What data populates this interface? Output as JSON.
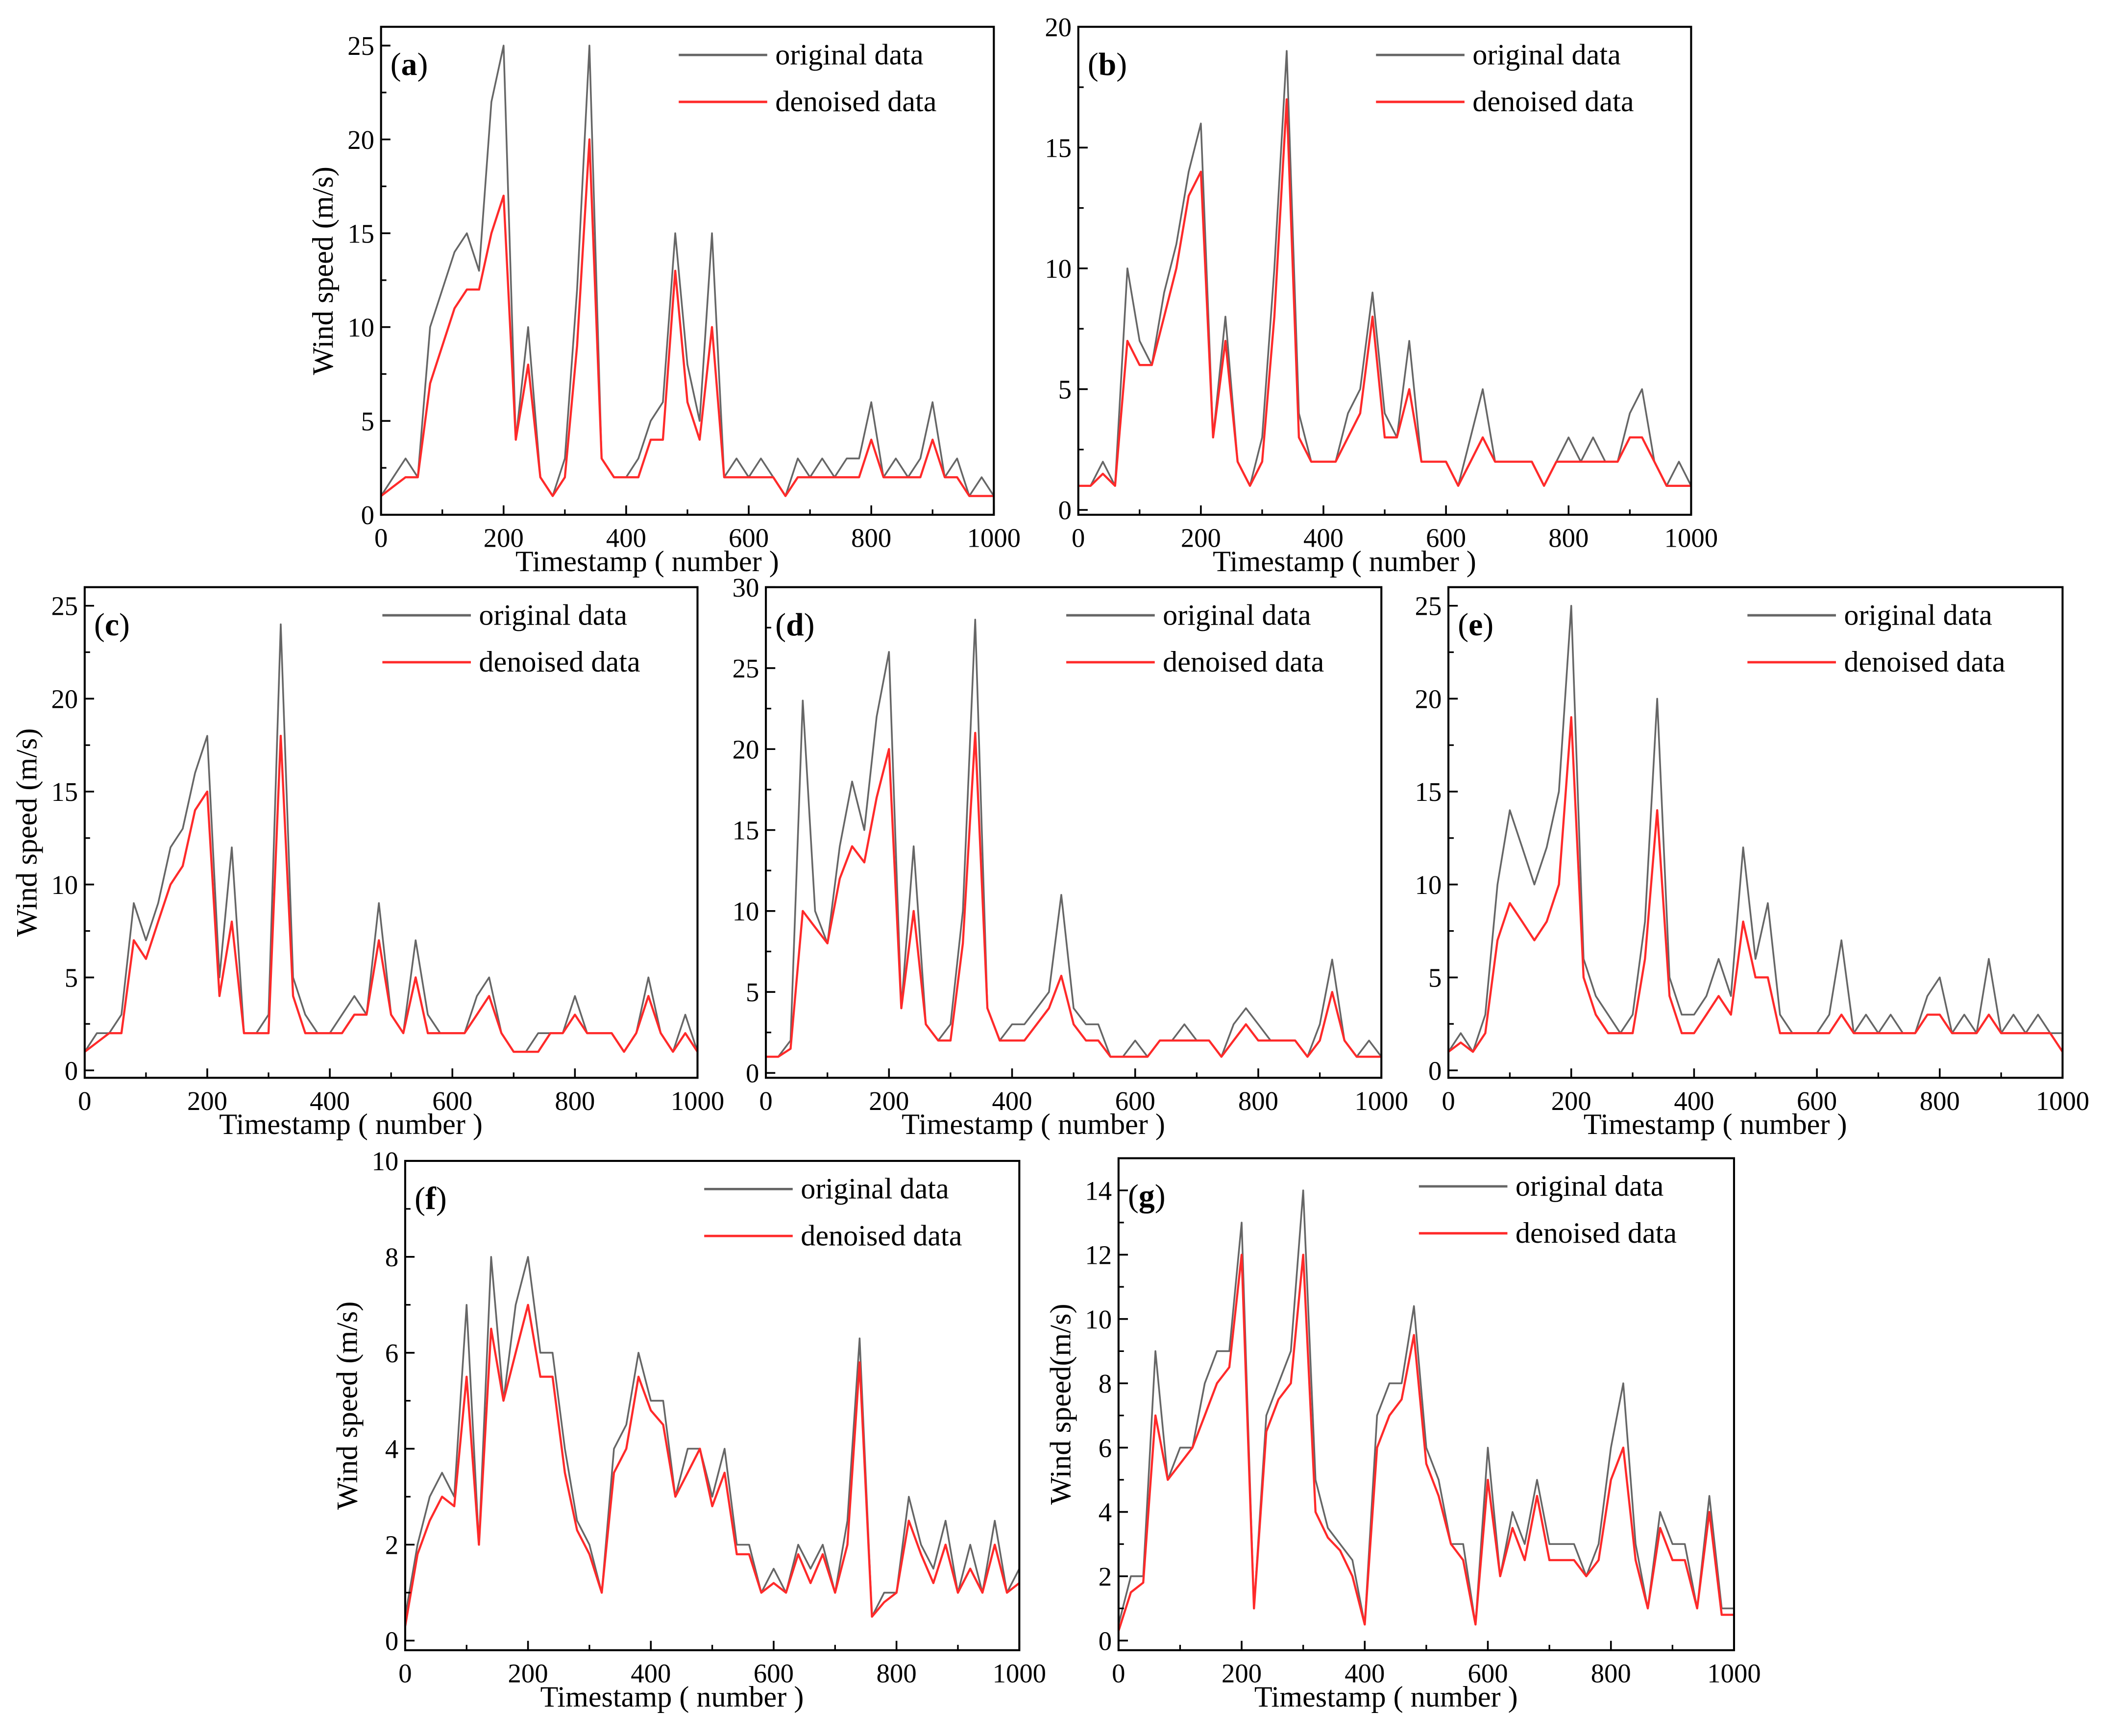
{
  "chart_data": [
    {
      "id": "a",
      "type": "line",
      "panel_label": "a",
      "title": "",
      "xlabel": "Timestamp ( number )",
      "ylabel": "Wind speed (m/s)",
      "xlim": [
        0,
        1000
      ],
      "ylim": [
        0,
        26
      ],
      "xticks": [
        0,
        200,
        400,
        600,
        800,
        1000
      ],
      "yticks": [
        0,
        5,
        10,
        15,
        20,
        25
      ],
      "legend": [
        "original data",
        "denoised data"
      ],
      "legend_position": "top-right",
      "series": [
        {
          "name": "original data",
          "color": "#666666",
          "values": [
            1,
            2,
            3,
            2,
            10,
            12,
            14,
            15,
            13,
            22,
            25,
            4,
            10,
            2,
            1,
            3,
            12,
            25,
            3,
            2,
            2,
            3,
            5,
            6,
            15,
            8,
            5,
            15,
            2,
            3,
            2,
            3,
            2,
            1,
            3,
            2,
            3,
            2,
            3,
            3,
            6,
            2,
            3,
            2,
            3,
            6,
            2,
            3,
            1,
            2,
            1
          ]
        },
        {
          "name": "denoised data",
          "color": "#ff2a2a",
          "values": [
            1,
            1.5,
            2,
            2,
            7,
            9,
            11,
            12,
            12,
            15,
            17,
            4,
            8,
            2,
            1,
            2,
            9,
            20,
            3,
            2,
            2,
            2,
            4,
            4,
            13,
            6,
            4,
            10,
            2,
            2,
            2,
            2,
            2,
            1,
            2,
            2,
            2,
            2,
            2,
            2,
            4,
            2,
            2,
            2,
            2,
            4,
            2,
            2,
            1,
            1,
            1
          ]
        }
      ]
    },
    {
      "id": "b",
      "type": "line",
      "panel_label": "b",
      "title": "",
      "xlabel": "Timestamp ( number )",
      "ylabel": "",
      "xlim": [
        0,
        1000
      ],
      "ylim": [
        -0.2,
        20
      ],
      "xticks": [
        0,
        200,
        400,
        600,
        800,
        1000
      ],
      "yticks": [
        0,
        5,
        10,
        15,
        20
      ],
      "legend": [
        "original data",
        "denoised data"
      ],
      "legend_position": "top-right",
      "series": [
        {
          "name": "original data",
          "color": "#666666",
          "values": [
            1,
            1,
            2,
            1,
            10,
            7,
            6,
            9,
            11,
            14,
            16,
            3,
            8,
            2,
            1,
            3,
            10,
            19,
            4,
            2,
            2,
            2,
            4,
            5,
            9,
            4,
            3,
            7,
            2,
            2,
            2,
            1,
            3,
            5,
            2,
            2,
            2,
            2,
            1,
            2,
            3,
            2,
            3,
            2,
            2,
            4,
            5,
            2,
            1,
            2,
            1
          ]
        },
        {
          "name": "denoised data",
          "color": "#ff2a2a",
          "values": [
            1,
            1,
            1.5,
            1,
            7,
            6,
            6,
            8,
            10,
            13,
            14,
            3,
            7,
            2,
            1,
            2,
            8,
            17,
            3,
            2,
            2,
            2,
            3,
            4,
            8,
            3,
            3,
            5,
            2,
            2,
            2,
            1,
            2,
            3,
            2,
            2,
            2,
            2,
            1,
            2,
            2,
            2,
            2,
            2,
            2,
            3,
            3,
            2,
            1,
            1,
            1
          ]
        }
      ]
    },
    {
      "id": "c",
      "type": "line",
      "panel_label": "c",
      "title": "",
      "xlabel": "Timestamp ( number )",
      "ylabel": "Wind speed (m/s)",
      "xlim": [
        0,
        1000
      ],
      "ylim": [
        -0.4,
        26
      ],
      "xticks": [
        0,
        200,
        400,
        600,
        800,
        1000
      ],
      "yticks": [
        0,
        5,
        10,
        15,
        20,
        25
      ],
      "legend": [
        "original data",
        "denoised data"
      ],
      "legend_position": "top-right",
      "series": [
        {
          "name": "original data",
          "color": "#666666",
          "values": [
            1,
            2,
            2,
            3,
            9,
            7,
            9,
            12,
            13,
            16,
            18,
            5,
            12,
            2,
            2,
            3,
            24,
            5,
            3,
            2,
            2,
            3,
            4,
            3,
            9,
            3,
            2,
            7,
            3,
            2,
            2,
            2,
            4,
            5,
            2,
            1,
            1,
            2,
            2,
            2,
            4,
            2,
            2,
            2,
            1,
            2,
            5,
            2,
            1,
            3,
            1
          ]
        },
        {
          "name": "denoised data",
          "color": "#ff2a2a",
          "values": [
            1,
            1.5,
            2,
            2,
            7,
            6,
            8,
            10,
            11,
            14,
            15,
            4,
            8,
            2,
            2,
            2,
            18,
            4,
            2,
            2,
            2,
            2,
            3,
            3,
            7,
            3,
            2,
            5,
            2,
            2,
            2,
            2,
            3,
            4,
            2,
            1,
            1,
            1,
            2,
            2,
            3,
            2,
            2,
            2,
            1,
            2,
            4,
            2,
            1,
            2,
            1
          ]
        }
      ]
    },
    {
      "id": "d",
      "type": "line",
      "panel_label": "d",
      "title": "",
      "xlabel": "Timestamp ( number )",
      "ylabel": "",
      "xlim": [
        0,
        1000
      ],
      "ylim": [
        -0.3,
        30
      ],
      "xticks": [
        0,
        200,
        400,
        600,
        800,
        1000
      ],
      "yticks": [
        0,
        5,
        10,
        15,
        20,
        25,
        30
      ],
      "legend": [
        "original data",
        "denoised data"
      ],
      "legend_position": "top-right",
      "series": [
        {
          "name": "original data",
          "color": "#666666",
          "values": [
            1,
            1,
            2,
            23,
            10,
            8,
            14,
            18,
            15,
            22,
            26,
            4,
            14,
            3,
            2,
            3,
            10,
            28,
            4,
            2,
            3,
            3,
            4,
            5,
            11,
            4,
            3,
            3,
            1,
            1,
            2,
            1,
            2,
            2,
            3,
            2,
            2,
            1,
            3,
            4,
            3,
            2,
            2,
            2,
            1,
            3,
            7,
            2,
            1,
            2,
            1
          ]
        },
        {
          "name": "denoised data",
          "color": "#ff2a2a",
          "values": [
            1,
            1,
            1.5,
            10,
            9,
            8,
            12,
            14,
            13,
            17,
            20,
            4,
            10,
            3,
            2,
            2,
            8,
            21,
            4,
            2,
            2,
            2,
            3,
            4,
            6,
            3,
            2,
            2,
            1,
            1,
            1,
            1,
            2,
            2,
            2,
            2,
            2,
            1,
            2,
            3,
            2,
            2,
            2,
            2,
            1,
            2,
            5,
            2,
            1,
            1,
            1
          ]
        }
      ]
    },
    {
      "id": "e",
      "type": "line",
      "panel_label": "e",
      "title": "",
      "xlabel": "Timestamp ( number )",
      "ylabel": "",
      "xlim": [
        0,
        1000
      ],
      "ylim": [
        -0.4,
        26
      ],
      "xticks": [
        0,
        200,
        400,
        600,
        800,
        1000
      ],
      "yticks": [
        0,
        5,
        10,
        15,
        20,
        25
      ],
      "legend": [
        "original data",
        "denoised data"
      ],
      "legend_position": "top-right",
      "series": [
        {
          "name": "original data",
          "color": "#666666",
          "values": [
            1,
            2,
            1,
            3,
            10,
            14,
            12,
            10,
            12,
            15,
            25,
            6,
            4,
            3,
            2,
            3,
            8,
            20,
            5,
            3,
            3,
            4,
            6,
            4,
            12,
            6,
            9,
            3,
            2,
            2,
            2,
            3,
            7,
            2,
            3,
            2,
            3,
            2,
            2,
            4,
            5,
            2,
            3,
            2,
            6,
            2,
            3,
            2,
            3,
            2,
            2
          ]
        },
        {
          "name": "denoised data",
          "color": "#ff2a2a",
          "values": [
            1,
            1.5,
            1,
            2,
            7,
            9,
            8,
            7,
            8,
            10,
            19,
            5,
            3,
            2,
            2,
            2,
            6,
            14,
            4,
            2,
            2,
            3,
            4,
            3,
            8,
            5,
            5,
            2,
            2,
            2,
            2,
            2,
            3,
            2,
            2,
            2,
            2,
            2,
            2,
            3,
            3,
            2,
            2,
            2,
            3,
            2,
            2,
            2,
            2,
            2,
            1
          ]
        }
      ]
    },
    {
      "id": "f",
      "type": "line",
      "panel_label": "f",
      "title": "",
      "xlabel": "Timestamp ( number )",
      "ylabel": "Wind speed (m/s)",
      "xlim": [
        0,
        1000
      ],
      "ylim": [
        -0.2,
        10
      ],
      "xticks": [
        0,
        200,
        400,
        600,
        800,
        1000
      ],
      "yticks": [
        0,
        2,
        4,
        6,
        8,
        10
      ],
      "legend": [
        "original data",
        "denoised data"
      ],
      "legend_position": "top-right",
      "series": [
        {
          "name": "original data",
          "color": "#666666",
          "values": [
            0.5,
            2,
            3,
            3.5,
            3,
            7,
            2,
            8,
            5,
            7,
            8,
            6,
            6,
            4,
            2.5,
            2,
            1,
            4,
            4.5,
            6,
            5,
            5,
            3,
            4,
            4,
            3,
            4,
            2,
            2,
            1,
            1.5,
            1,
            2,
            1.5,
            2,
            1,
            2.5,
            6.3,
            0.5,
            1,
            1,
            3,
            2,
            1.5,
            2.5,
            1,
            2,
            1,
            2.5,
            1,
            1.5
          ]
        },
        {
          "name": "denoised data",
          "color": "#ff2a2a",
          "values": [
            0.3,
            1.8,
            2.5,
            3,
            2.8,
            5.5,
            2,
            6.5,
            5,
            6,
            7,
            5.5,
            5.5,
            3.5,
            2.3,
            1.8,
            1,
            3.5,
            4,
            5.5,
            4.8,
            4.5,
            3,
            3.5,
            4,
            2.8,
            3.5,
            1.8,
            1.8,
            1,
            1.2,
            1,
            1.8,
            1.2,
            1.8,
            1,
            2,
            5.8,
            0.5,
            0.8,
            1,
            2.5,
            1.8,
            1.2,
            2,
            1,
            1.5,
            1,
            2,
            1,
            1.2
          ]
        }
      ]
    },
    {
      "id": "g",
      "type": "line",
      "panel_label": "g",
      "title": "",
      "xlabel": "Timestamp ( number )",
      "ylabel": "Wind speed(m/s)",
      "xlim": [
        0,
        1000
      ],
      "ylim": [
        -0.3,
        15
      ],
      "xticks": [
        0,
        200,
        400,
        600,
        800,
        1000
      ],
      "yticks": [
        0,
        2,
        4,
        6,
        8,
        10,
        12,
        14
      ],
      "legend": [
        "original data",
        "denoised data"
      ],
      "legend_position": "top-right",
      "series": [
        {
          "name": "original data",
          "color": "#666666",
          "values": [
            0.5,
            2,
            2,
            9,
            5,
            6,
            6,
            8,
            9,
            9,
            13,
            1,
            7,
            8,
            9,
            14,
            5,
            3.5,
            3,
            2.5,
            0.5,
            7,
            8,
            8,
            10.4,
            6,
            5,
            3,
            3,
            0.5,
            6,
            2,
            4,
            3,
            5,
            3,
            3,
            3,
            2,
            3,
            6,
            8,
            3,
            1,
            4,
            3,
            3,
            1,
            4.5,
            1,
            1
          ]
        },
        {
          "name": "denoised data",
          "color": "#ff2a2a",
          "values": [
            0.3,
            1.5,
            1.8,
            7,
            5,
            5.5,
            6,
            7,
            8,
            8.5,
            12,
            1,
            6.5,
            7.5,
            8,
            12,
            4,
            3.2,
            2.8,
            2,
            0.5,
            6,
            7,
            7.5,
            9.5,
            5.5,
            4.5,
            3,
            2.5,
            0.5,
            5,
            2,
            3.5,
            2.5,
            4.5,
            2.5,
            2.5,
            2.5,
            2,
            2.5,
            5,
            6,
            2.5,
            1,
            3.5,
            2.5,
            2.5,
            1,
            4,
            0.8,
            0.8
          ]
        }
      ]
    }
  ]
}
